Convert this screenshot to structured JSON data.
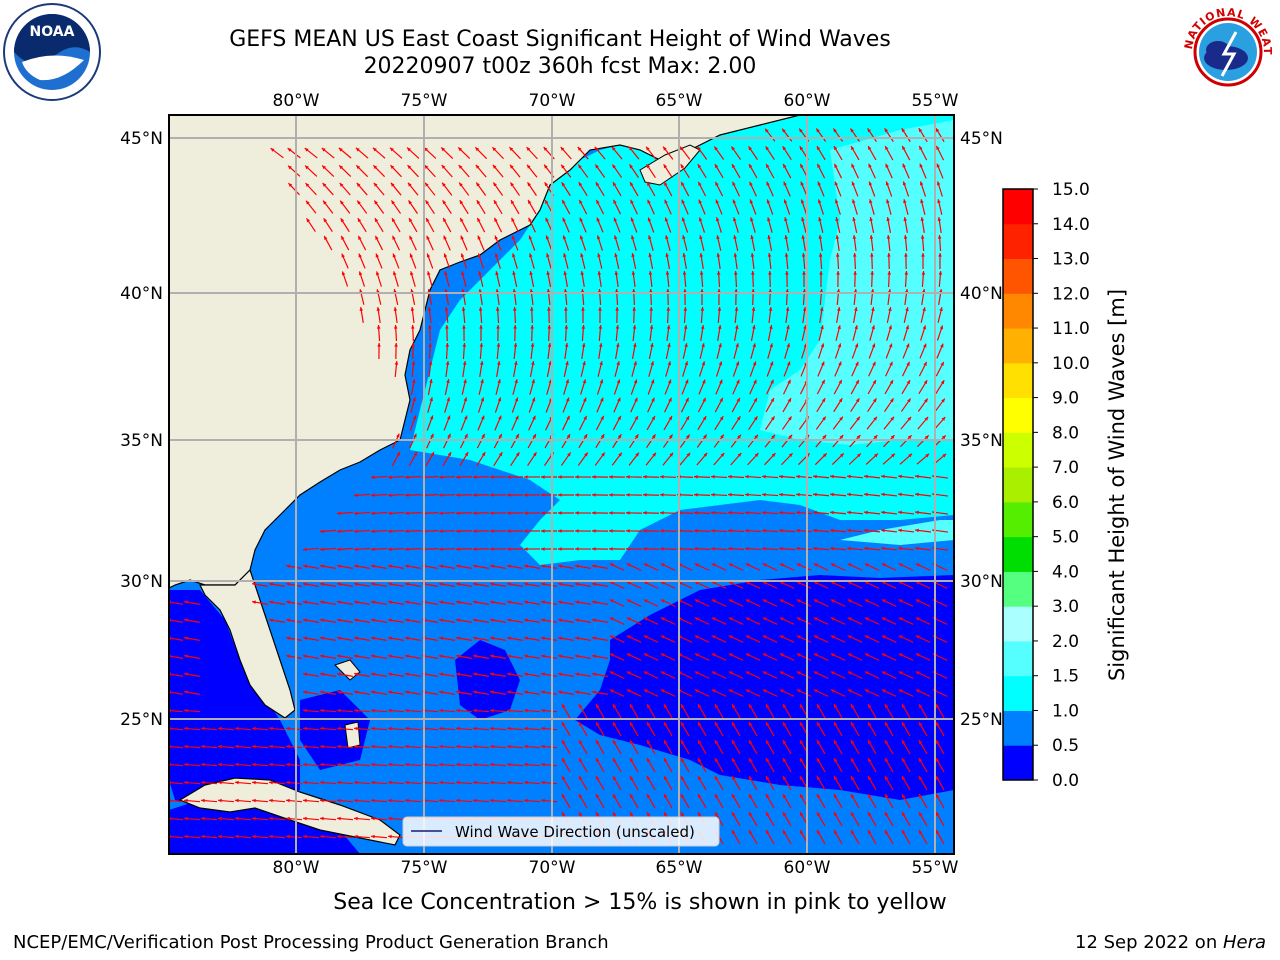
{
  "header": {
    "title_line1": "GEFS MEAN US East Coast Significant Height of Wind Waves",
    "title_line2": "20220907 t00z 360h fcst   Max: 2.00"
  },
  "logos": {
    "left": {
      "text": "NOAA",
      "icon": "noaa-logo-icon"
    },
    "right": {
      "text": "NATIONAL WEATHER SERVICE",
      "icon": "nws-logo-icon"
    }
  },
  "map": {
    "lon_labels": [
      "80°W",
      "75°W",
      "70°W",
      "65°W",
      "60°W",
      "55°W"
    ],
    "lat_labels": [
      "45°N",
      "40°N",
      "35°N",
      "30°N",
      "25°N"
    ],
    "legend_label": "Wind Wave Direction (unscaled)",
    "colors": {
      "land": "#efeedc",
      "deep_blue": "#0000ff",
      "blue": "#0080ff",
      "cyan": "#00ffff",
      "light_cyan": "#55ffff",
      "arrow": "#ff0000",
      "grid": "#b0b0b0"
    }
  },
  "colorbar": {
    "label": "Significant Height of Wind Waves [m]",
    "tick_labels": [
      "0.0",
      "0.5",
      "1.0",
      "1.5",
      "2.0",
      "3.0",
      "4.0",
      "5.0",
      "6.0",
      "7.0",
      "8.0",
      "9.0",
      "10.0",
      "11.0",
      "12.0",
      "13.0",
      "14.0",
      "15.0"
    ],
    "colors": [
      "#0000ff",
      "#0080ff",
      "#00ffff",
      "#55ffff",
      "#aaffff",
      "#55ff80",
      "#00dd00",
      "#55ee00",
      "#aaee00",
      "#ccff00",
      "#ffff00",
      "#ffe000",
      "#ffb000",
      "#ff8800",
      "#ff5500",
      "#ff2200",
      "#ff0000"
    ]
  },
  "footer": {
    "note": "Sea Ice Concentration > 15% is shown in pink to yellow",
    "left": "NCEP/EMC/Verification Post Processing Product Generation Branch",
    "right_date": "12 Sep 2022 on ",
    "right_host": "Hera"
  }
}
